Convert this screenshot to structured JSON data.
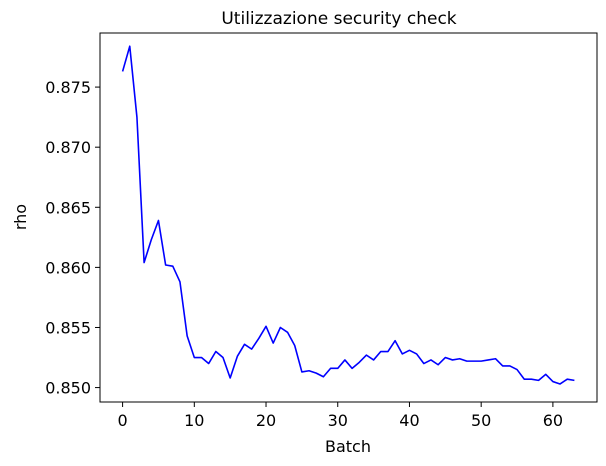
{
  "chart_data": {
    "type": "line",
    "title": "Utilizzazione security check",
    "xlabel": "Batch",
    "ylabel": "rho",
    "xlim": [
      -3.15,
      66.15
    ],
    "ylim": [
      0.8488,
      0.8795
    ],
    "xticks": [
      0,
      10,
      20,
      30,
      40,
      50,
      60
    ],
    "yticks": [
      0.85,
      0.855,
      0.86,
      0.865,
      0.87,
      0.875
    ],
    "ytick_labels": [
      "0.850",
      "0.855",
      "0.860",
      "0.865",
      "0.870",
      "0.875"
    ],
    "grid": false,
    "series": [
      {
        "color": "#0000ff",
        "x": [
          0,
          1,
          2,
          3,
          4,
          5,
          6,
          7,
          8,
          9,
          10,
          11,
          12,
          13,
          14,
          15,
          16,
          17,
          18,
          19,
          20,
          21,
          22,
          23,
          24,
          25,
          26,
          27,
          28,
          29,
          30,
          31,
          32,
          33,
          34,
          35,
          36,
          37,
          38,
          39,
          40,
          41,
          42,
          43,
          44,
          45,
          46,
          47,
          48,
          49,
          50,
          51,
          52,
          53,
          54,
          55,
          56,
          57,
          58,
          59,
          60,
          61,
          62,
          63
        ],
        "y": [
          0.8763,
          0.8784,
          0.8725,
          0.8604,
          0.8623,
          0.8639,
          0.8602,
          0.8601,
          0.8588,
          0.8543,
          0.8525,
          0.8525,
          0.852,
          0.853,
          0.8525,
          0.8508,
          0.8526,
          0.8536,
          0.8532,
          0.8541,
          0.8551,
          0.8537,
          0.855,
          0.8546,
          0.8535,
          0.8513,
          0.8514,
          0.8512,
          0.8509,
          0.8516,
          0.8516,
          0.8523,
          0.8516,
          0.8521,
          0.8527,
          0.8523,
          0.853,
          0.853,
          0.8539,
          0.8528,
          0.8531,
          0.8528,
          0.852,
          0.8523,
          0.8519,
          0.8525,
          0.8523,
          0.8524,
          0.8522,
          0.8522,
          0.8522,
          0.8523,
          0.8524,
          0.8518,
          0.8518,
          0.8515,
          0.8507,
          0.8507,
          0.8506,
          0.8511,
          0.8505,
          0.8503,
          0.8507,
          0.8506
        ]
      }
    ]
  }
}
